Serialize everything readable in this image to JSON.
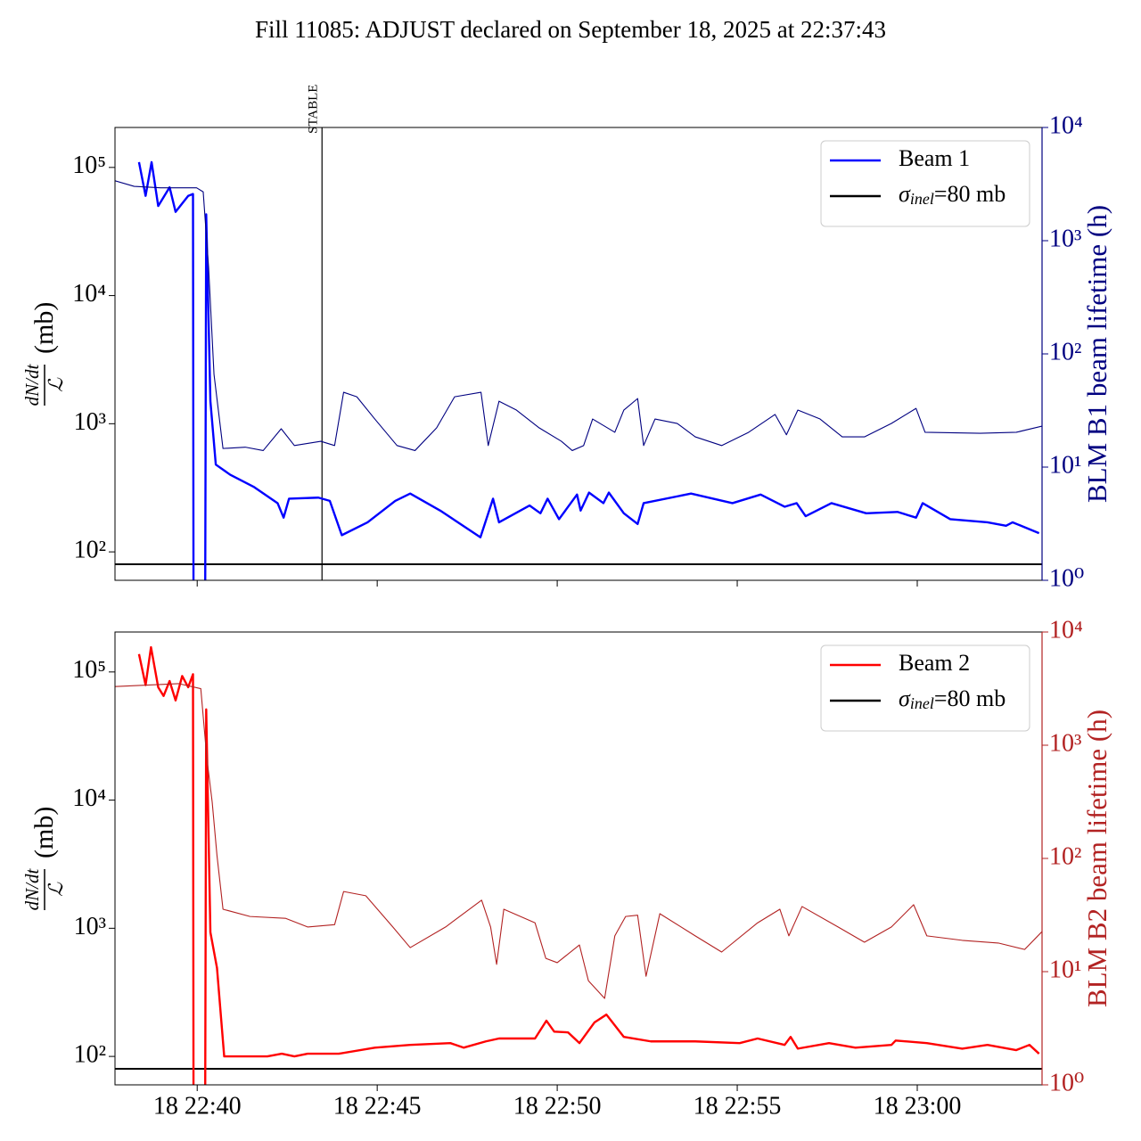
{
  "title": "Fill 11085: ADJUST declared on September 18, 2025 at 22:37:43",
  "chart_data": [
    {
      "type": "line",
      "log_y": true,
      "log_y2": true,
      "legend": "upper right",
      "xtick_labels": false,
      "ylabel": {
        "numerator": "dN/dt",
        "denominator": "ℒ",
        "unit": "(mb)"
      },
      "y2label": "BLM B1 beam lifetime (h)",
      "y2color": "#000080",
      "xlim": [
        "18 22:37:43",
        "18 23:03:28"
      ],
      "xticks": [
        "18 22:40",
        "18 22:45",
        "18 22:50",
        "18 22:55",
        "18 23:00"
      ],
      "ylim": [
        60,
        205000
      ],
      "yticks": [
        {
          "value": 100,
          "label": "10²"
        },
        {
          "value": 1000,
          "label": "10³"
        },
        {
          "value": 10000,
          "label": "10⁴"
        },
        {
          "value": 100000,
          "label": "10⁵"
        }
      ],
      "y2lim": [
        1,
        10000
      ],
      "y2ticks": [
        {
          "value": 1,
          "label": "10⁰"
        },
        {
          "value": 10,
          "label": "10¹"
        },
        {
          "value": 100,
          "label": "10²"
        },
        {
          "value": 1000,
          "label": "10³"
        },
        {
          "value": 10000,
          "label": "10⁴"
        }
      ],
      "reference_line": {
        "value": 80,
        "color": "#000000",
        "label": {
          "symbol": "σ",
          "subscript": "inel",
          "text": "=80 mb"
        }
      },
      "vline": {
        "x": "18 22:43:28",
        "label": "STABLE"
      },
      "series": [
        {
          "name": "Beam 1",
          "color": "#0000ff",
          "x": [
            "18 22:38:23",
            "18 22:38:34",
            "18 22:38:44",
            "18 22:38:55",
            "18 22:39:14",
            "18 22:39:24",
            "18 22:39:45",
            "18 22:39:53",
            "18 22:39:54",
            "18 22:40:13",
            "18 22:40:15",
            "18 22:40:22",
            "18 22:40:31",
            "18 22:40:55",
            "18 22:41:35",
            "18 22:42:14",
            "18 22:42:24",
            "18 22:42:33",
            "18 22:43:22",
            "18 22:43:41",
            "18 22:44:01",
            "18 22:44:44",
            "18 22:45:30",
            "18 22:45:55",
            "18 22:46:45",
            "18 22:47:52",
            "18 22:48:13",
            "18 22:48:23",
            "18 22:49:14",
            "18 22:49:32",
            "18 22:49:44",
            "18 22:50:03",
            "18 22:50:33",
            "18 22:50:39",
            "18 22:50:53",
            "18 22:51:17",
            "18 22:51:26",
            "18 22:51:51",
            "18 22:52:14",
            "18 22:52:24",
            "18 22:53:43",
            "18 22:54:52",
            "18 22:55:39",
            "18 22:56:19",
            "18 22:56:39",
            "18 22:56:54",
            "18 22:57:37",
            "18 22:58:35",
            "18 22:59:27",
            "18 22:59:58",
            "18 23:00:09",
            "18 23:00:55",
            "18 23:01:57",
            "18 23:02:28",
            "18 23:02:39",
            "18 23:03:23"
          ],
          "values": [
            110000,
            60000,
            110000,
            50000,
            70000,
            45000,
            60000,
            62000,
            0,
            0,
            43000,
            1500,
            480,
            400,
            320,
            240,
            185,
            260,
            265,
            250,
            135,
            170,
            250,
            285,
            210,
            130,
            260,
            170,
            230,
            200,
            260,
            180,
            280,
            210,
            290,
            240,
            290,
            200,
            165,
            240,
            285,
            240,
            280,
            225,
            240,
            190,
            240,
            200,
            205,
            185,
            240,
            180,
            170,
            160,
            170,
            140
          ]
        },
        {
          "axis": "y2",
          "color": "#000080",
          "x": [
            "18 22:37:43",
            "18 22:38:15",
            "18 22:38:59",
            "18 22:39:59",
            "18 22:40:10",
            "18 22:40:19",
            "18 22:40:28",
            "18 22:40:43",
            "18 22:41:20",
            "18 22:41:50",
            "18 22:42:20",
            "18 22:42:42",
            "18 22:43:26",
            "18 22:43:49",
            "18 22:44:04",
            "18 22:44:26",
            "18 22:44:56",
            "18 22:45:33",
            "18 22:46:03",
            "18 22:46:39",
            "18 22:47:09",
            "18 22:47:53",
            "18 22:48:05",
            "18 22:48:23",
            "18 22:48:52",
            "18 22:49:30",
            "18 22:50:07",
            "18 22:50:25",
            "18 22:50:44",
            "18 22:50:59",
            "18 22:51:36",
            "18 22:51:51",
            "18 22:52:14",
            "18 22:52:24",
            "18 22:52:43",
            "18 22:53:20",
            "18 22:53:50",
            "18 22:54:34",
            "18 22:55:19",
            "18 22:56:03",
            "18 22:56:22",
            "18 22:56:41",
            "18 22:57:18",
            "18 22:57:55",
            "18 22:58:32",
            "18 22:59:17",
            "18 22:59:58",
            "18 23:00:13",
            "18 23:01:45",
            "18 23:02:45",
            "18 23:03:28"
          ],
          "values": [
            3380,
            3020,
            2930,
            2930,
            2700,
            580,
            66,
            14.6,
            15,
            14,
            21.8,
            15.5,
            16.9,
            15.5,
            45.8,
            41.8,
            26.6,
            15.5,
            14,
            22.2,
            41.8,
            45.8,
            15.5,
            38.2,
            31.9,
            22.2,
            16.9,
            14,
            15.5,
            26.6,
            20.3,
            31.9,
            40.3,
            15.5,
            26.6,
            24.3,
            18.5,
            15.5,
            20.3,
            29.2,
            19.3,
            31.9,
            26.6,
            18.5,
            18.5,
            24.3,
            33,
            20.3,
            19.9,
            20.3,
            23
          ]
        }
      ]
    },
    {
      "type": "line",
      "log_y": true,
      "log_y2": true,
      "legend": "upper right",
      "xtick_labels": true,
      "ylabel": {
        "numerator": "dN/dt",
        "denominator": "ℒ",
        "unit": "(mb)"
      },
      "y2label": "BLM B2 beam lifetime (h)",
      "y2color": "#b22222",
      "xlim": [
        "18 22:37:43",
        "18 23:03:28"
      ],
      "xticks": [
        "18 22:40",
        "18 22:45",
        "18 22:50",
        "18 22:55",
        "18 23:00"
      ],
      "ylim": [
        60,
        205000
      ],
      "yticks": [
        {
          "value": 100,
          "label": "10²"
        },
        {
          "value": 1000,
          "label": "10³"
        },
        {
          "value": 10000,
          "label": "10⁴"
        },
        {
          "value": 100000,
          "label": "10⁵"
        }
      ],
      "y2lim": [
        1,
        10000
      ],
      "y2ticks": [
        {
          "value": 1,
          "label": "10⁰"
        },
        {
          "value": 10,
          "label": "10¹"
        },
        {
          "value": 100,
          "label": "10²"
        },
        {
          "value": 1000,
          "label": "10³"
        },
        {
          "value": 10000,
          "label": "10⁴"
        }
      ],
      "reference_line": {
        "value": 80,
        "color": "#000000",
        "label": {
          "symbol": "σ",
          "subscript": "inel",
          "text": "=80 mb"
        }
      },
      "series": [
        {
          "name": "Beam 2",
          "color": "#ff0000",
          "x": [
            "18 22:38:23",
            "18 22:38:34",
            "18 22:38:43",
            "18 22:38:55",
            "18 22:39:04",
            "18 22:39:14",
            "18 22:39:24",
            "18 22:39:35",
            "18 22:39:45",
            "18 22:39:53",
            "18 22:39:54",
            "18 22:40:13",
            "18 22:40:15",
            "18 22:40:22",
            "18 22:40:33",
            "18 22:40:45",
            "18 22:41:57",
            "18 22:42:21",
            "18 22:42:42",
            "18 22:43:04",
            "18 22:43:56",
            "18 22:44:56",
            "18 22:45:55",
            "18 22:47:02",
            "18 22:47:24",
            "18 22:48:01",
            "18 22:48:23",
            "18 22:49:23",
            "18 22:49:42",
            "18 22:49:55",
            "18 22:50:18",
            "18 22:50:37",
            "18 22:51:02",
            "18 22:51:22",
            "18 22:51:51",
            "18 22:52:36",
            "18 22:53:50",
            "18 22:55:04",
            "18 22:55:34",
            "18 22:56:19",
            "18 22:56:29",
            "18 22:56:41",
            "18 22:57:33",
            "18 22:58:17",
            "18 22:59:17",
            "18 22:59:24",
            "18 23:00:16",
            "18 23:01:15",
            "18 23:01:57",
            "18 23:02:45",
            "18 23:03:07",
            "18 23:03:23"
          ],
          "values": [
            138000,
            79000,
            156000,
            76000,
            65000,
            85000,
            60000,
            93000,
            76000,
            96000,
            0,
            0,
            51000,
            930,
            490,
            100,
            100,
            105,
            100,
            105,
            105,
            117,
            123,
            127,
            117,
            131,
            138,
            138,
            190,
            156,
            154,
            127,
            184,
            212,
            142,
            131,
            131,
            127,
            138,
            123,
            142,
            115,
            127,
            117,
            123,
            133,
            127,
            115,
            123,
            112,
            123,
            105
          ]
        },
        {
          "axis": "y2",
          "color": "#b22222",
          "x": [
            "18 22:37:43",
            "18 22:39:29",
            "18 22:40:06",
            "18 22:40:16",
            "18 22:40:25",
            "18 22:40:33",
            "18 22:40:43",
            "18 22:41:28",
            "18 22:42:27",
            "18 22:43:04",
            "18 22:43:49",
            "18 22:44:04",
            "18 22:44:41",
            "18 22:45:26",
            "18 22:45:55",
            "18 22:46:54",
            "18 22:47:54",
            "18 22:48:09",
            "18 22:48:19",
            "18 22:48:31",
            "18 22:49:23",
            "18 22:49:41",
            "18 22:50:00",
            "18 22:50:37",
            "18 22:50:52",
            "18 22:51:19",
            "18 22:51:36",
            "18 22:51:54",
            "18 22:52:14",
            "18 22:52:28",
            "18 22:52:51",
            "18 22:53:50",
            "18 22:54:34",
            "18 22:55:34",
            "18 22:56:11",
            "18 22:56:26",
            "18 22:56:48",
            "18 22:57:48",
            "18 22:58:32",
            "18 22:59:17",
            "18 22:59:54",
            "18 23:00:16",
            "18 23:01:15",
            "18 23:02:15",
            "18 23:02:59",
            "18 23:03:28"
          ],
          "values": [
            3300,
            3500,
            3160,
            775,
            314,
            106,
            35.6,
            30.7,
            29.6,
            24.8,
            26,
            51,
            46.8,
            24.8,
            16.3,
            24.8,
            42.8,
            24.8,
            11.6,
            35.6,
            27,
            13.1,
            12,
            17.2,
            8.3,
            5.8,
            20.7,
            30.7,
            31.5,
            9.1,
            32.5,
            20.7,
            14.9,
            27,
            35.6,
            20.7,
            37.6,
            24.8,
            18.2,
            24.8,
            39,
            20.7,
            18.9,
            17.9,
            15.7,
            22.6
          ]
        }
      ]
    }
  ]
}
